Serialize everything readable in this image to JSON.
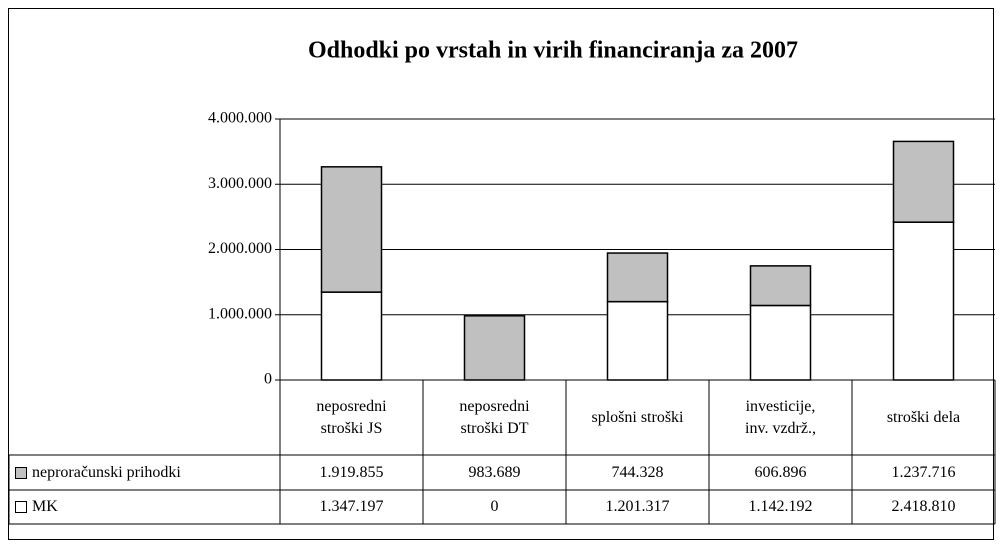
{
  "chart_data": {
    "type": "bar",
    "stacked": true,
    "title": "Odhodki po vrstah in virih financiranja za 2007",
    "categories": [
      "neposredni\nstroški JS",
      "neposredni\nstroški DT",
      "splošni stroški",
      "investicije,\ninv. vzdrž.,",
      "stroški dela"
    ],
    "series": [
      {
        "name": "MK",
        "color": "#ffffff",
        "values": [
          1347197,
          0,
          1201317,
          1142192,
          2418810
        ],
        "value_labels": [
          "1.347.197",
          "0",
          "1.201.317",
          "1.142.192",
          "2.418.810"
        ]
      },
      {
        "name": "neproračunski prihodki",
        "color": "#c0c0c0",
        "values": [
          1919855,
          983689,
          744328,
          606896,
          1237716
        ],
        "value_labels": [
          "1.919.855",
          "983.689",
          "744.328",
          "606.896",
          "1.237.716"
        ]
      }
    ],
    "ylim": [
      0,
      4000000
    ],
    "yticks": [
      0,
      {
        "value": 1000000,
        "label": "1.000.000"
      },
      {
        "value": 2000000,
        "label": "2.000.000"
      },
      {
        "value": 3000000,
        "label": "3.000.000"
      },
      {
        "value": 4000000,
        "label": "4.000.000"
      }
    ],
    "grid": true,
    "data_table": true
  }
}
